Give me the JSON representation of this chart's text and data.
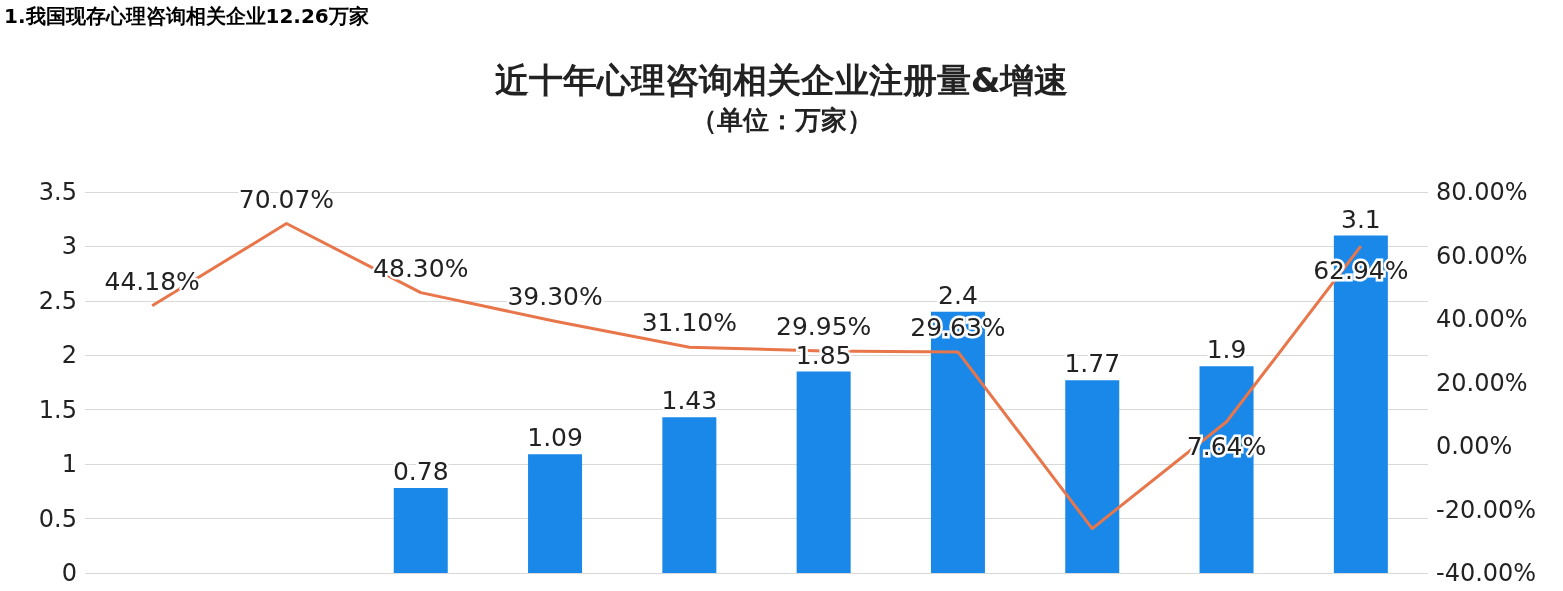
{
  "chart_data": {
    "type": "bar",
    "title": "近十年心理咨询相关企业注册量&增速",
    "subtitle": "（单位：万家）",
    "annotations": [
      "1.我国现存心理咨询相关企业12.26万家"
    ],
    "categories": [
      null,
      null,
      null,
      null,
      null,
      null,
      null,
      null,
      null,
      null
    ],
    "series": [
      {
        "color": "#1a88e8",
        "values": [
          null,
          null,
          0.78,
          1.09,
          1.43,
          1.85,
          2.4,
          1.77,
          1.9,
          3.1
        ],
        "value_labels": [
          null,
          null,
          "0.78",
          "1.09",
          "1.43",
          "1.85",
          "2.4",
          "1.77",
          "1.9",
          "3.1"
        ]
      },
      {
        "type": "line",
        "axis": "y2",
        "color": "#e8764a",
        "marker": "none",
        "values": [
          44.18,
          70.07,
          48.3,
          39.3,
          31.1,
          29.95,
          29.63,
          -26,
          7.64,
          62.94
        ],
        "value_labels": [
          "44.18%",
          "70.07%",
          "48.30%",
          "39.30%",
          "31.10%",
          "29.95%",
          "29.63%",
          null,
          "7.64%",
          "62.94%"
        ]
      }
    ],
    "ylim": [
      0,
      3.5
    ],
    "yticks": [
      0,
      0.5,
      1,
      1.5,
      2,
      2.5,
      3,
      3.5
    ],
    "y2lim": [
      -40,
      80
    ],
    "y2ticks": [
      {
        "value": -40,
        "label": "-40.00%"
      },
      {
        "value": -20,
        "label": "-20.00%"
      },
      {
        "value": 0,
        "label": "0.00%"
      },
      {
        "value": 20,
        "label": "20.00%"
      },
      {
        "value": 40,
        "label": "40.00%"
      },
      {
        "value": 60,
        "label": "60.00%"
      },
      {
        "value": 80,
        "label": "80.00%"
      }
    ],
    "grid": "y"
  }
}
